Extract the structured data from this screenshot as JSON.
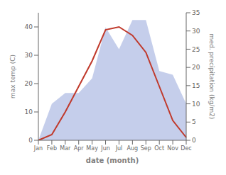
{
  "chart_data": {
    "type": "line",
    "xlabel": "date (month)",
    "ylabel": "max temp (C)",
    "y2label": "med. precipitation (kg/m2)",
    "categories": [
      "Jan",
      "Feb",
      "Mar",
      "Apr",
      "May",
      "Jun",
      "Jul",
      "Aug",
      "Sep",
      "Oct",
      "Nov",
      "Dec"
    ],
    "series": [
      {
        "type": "area",
        "axis": "y2",
        "color": "#bbc5e8",
        "values": [
          0,
          10,
          13,
          13,
          17,
          31,
          25,
          33,
          33,
          19,
          18,
          10
        ]
      },
      {
        "type": "line",
        "color": "#c0392b",
        "values": [
          0,
          2,
          10,
          19,
          28,
          39,
          40,
          37,
          31,
          19,
          7,
          1
        ]
      }
    ],
    "ylim": [
      0,
      45
    ],
    "yticks": [
      0,
      10,
      20,
      30,
      40
    ],
    "y2lim": [
      0,
      35
    ],
    "y2ticks": [
      0,
      5,
      10,
      15,
      20,
      25,
      30,
      35
    ],
    "grid": false
  }
}
